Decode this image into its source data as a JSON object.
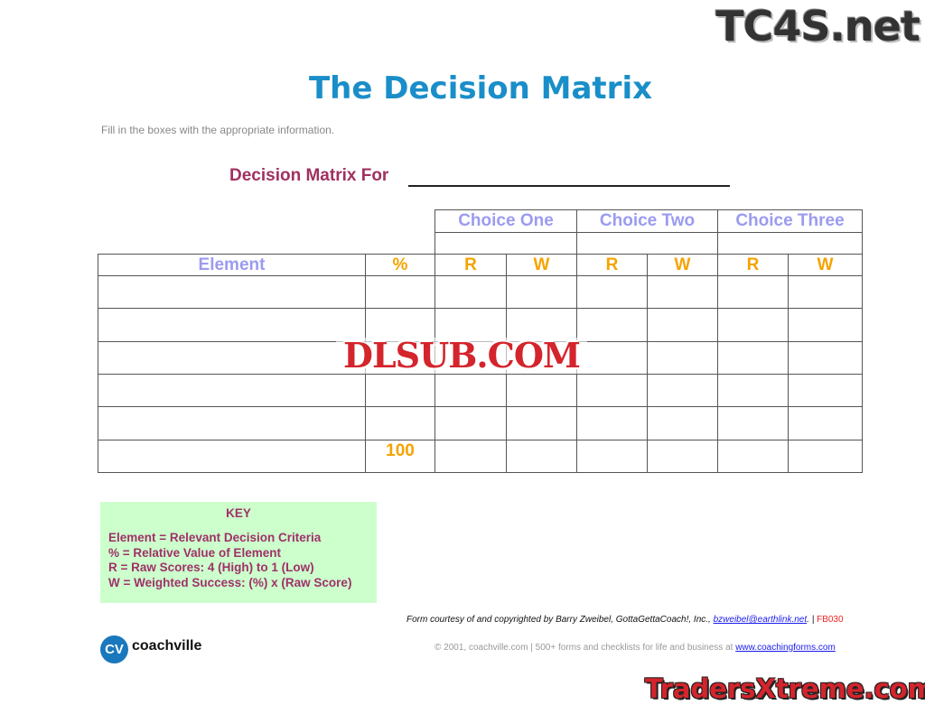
{
  "header": {
    "title": "The Decision Matrix",
    "instructions": "Fill in the boxes with the appropriate information."
  },
  "matrix": {
    "for_label": "Decision Matrix For",
    "for_value": "",
    "choices": [
      "Choice One",
      "Choice Two",
      "Choice Three"
    ],
    "columns": {
      "element": "Element",
      "percent": "%",
      "r": "R",
      "w": "W"
    },
    "rows": 5,
    "total_percent": "100"
  },
  "key": {
    "title": "KEY",
    "lines": [
      "Element = Relevant Decision Criteria",
      "% = Relative Value of Element",
      "R = Raw Scores: 4 (High) to 1 (Low)",
      "W = Weighted Success: (%) x (Raw Score)"
    ]
  },
  "footer": {
    "courtesy": "Form courtesy of and copyrighted by Barry Zweibel, GottaGettaCoach!, Inc., ",
    "email": "bzweibel@earthlink.net",
    "sep": ". | ",
    "form_code": "FB030",
    "copyright": "© 2001, coachville.com | 500+ forms and checklists for life and business at ",
    "site": "www.coachingforms.com",
    "logo_initials": "CV",
    "logo_name": "coachville"
  },
  "watermarks": [
    "TC4S.net",
    "DLSUB.COM",
    "TradersXtreme.com"
  ],
  "colors": {
    "title": "#1a8ec9",
    "choice": "#9b9bf0",
    "rw": "#f5a300",
    "key_bg": "#ccffcc",
    "key_text": "#a0306a"
  }
}
